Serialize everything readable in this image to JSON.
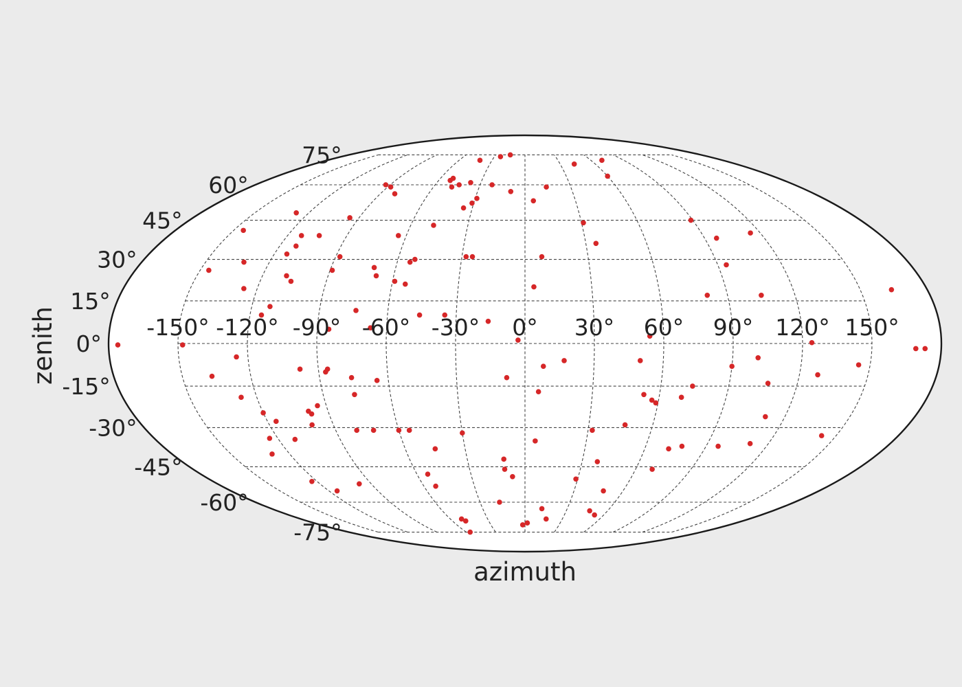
{
  "chart_data": {
    "type": "scatter",
    "projection": "mollweide",
    "title": "",
    "xlabel": "azimuth",
    "ylabel": "zenith",
    "xlim": [
      -180,
      180
    ],
    "ylim": [
      -90,
      90
    ],
    "grid": true,
    "x_ticks": [
      -150,
      -120,
      -90,
      -60,
      -30,
      0,
      30,
      60,
      90,
      120,
      150
    ],
    "x_tick_labels": [
      "-150°",
      "-120°",
      "-90°",
      "-60°",
      "-30°",
      "0°",
      "30°",
      "60°",
      "90°",
      "120°",
      "150°"
    ],
    "y_ticks": [
      75,
      60,
      45,
      30,
      15,
      0,
      -15,
      -30,
      -45,
      -60,
      -75
    ],
    "y_tick_labels": [
      "75°",
      "60°",
      "45°",
      "30°",
      "15°",
      "0°",
      "-15°",
      "-30°",
      "-45°",
      "-60°",
      "-75°"
    ],
    "marker_color": "#d62728",
    "background_color": "#ebebeb",
    "axes_facecolor": "#ffffff",
    "series": [
      {
        "points": [
          [
            -176,
            -0.5
          ],
          [
            -148,
            -0.5
          ],
          [
            -146,
            26
          ],
          [
            -145,
            41
          ],
          [
            -137,
            -11.5
          ],
          [
            -132,
            29
          ],
          [
            -127,
            -19
          ],
          [
            -124,
            -34
          ],
          [
            -125,
            -4.7
          ],
          [
            -126,
            19.4
          ],
          [
            -129,
            -40
          ],
          [
            -127,
            48
          ],
          [
            -123,
            -51
          ],
          [
            -120,
            -24.6
          ],
          [
            -116,
            -27.7
          ],
          [
            -112,
            -34.4
          ],
          [
            -115,
            -55
          ],
          [
            -114,
            32
          ],
          [
            -115,
            10
          ],
          [
            -113,
            39
          ],
          [
            -112,
            35
          ],
          [
            -112,
            13
          ],
          [
            -109,
            24
          ],
          [
            -106,
            22
          ],
          [
            -104,
            39
          ],
          [
            -100,
            -29
          ],
          [
            -99,
            -24
          ],
          [
            -98,
            -9
          ],
          [
            -98,
            -25
          ],
          [
            -97,
            -52
          ],
          [
            -95,
            46
          ],
          [
            -94,
            -22
          ],
          [
            -93,
            60
          ],
          [
            -89,
            26
          ],
          [
            -88,
            59
          ],
          [
            -88,
            31
          ],
          [
            -87,
            -10
          ],
          [
            -86,
            -9
          ],
          [
            -85,
            5
          ],
          [
            -80,
            -31
          ],
          [
            -81,
            56
          ],
          [
            -76,
            -12
          ],
          [
            -76,
            -18
          ],
          [
            -74,
            11.6
          ],
          [
            -70,
            27
          ],
          [
            -72,
            -31
          ],
          [
            -68,
            24
          ],
          [
            -65,
            -13
          ],
          [
            -67,
            5.5
          ],
          [
            -64,
            39
          ],
          [
            -60,
            -31
          ],
          [
            -59,
            22
          ],
          [
            -55,
            -31
          ],
          [
            -56,
            -75
          ],
          [
            -54,
            21
          ],
          [
            -54,
            -48
          ],
          [
            -53,
            -53
          ],
          [
            -54,
            29
          ],
          [
            -52,
            30
          ],
          [
            -51,
            -68
          ],
          [
            -52,
            62
          ],
          [
            -51,
            63
          ],
          [
            -49,
            -69
          ],
          [
            -48,
            43
          ],
          [
            -48,
            59
          ],
          [
            -46,
            10
          ],
          [
            -45,
            -38
          ],
          [
            -44,
            60
          ],
          [
            -41,
            72
          ],
          [
            -37,
            61
          ],
          [
            -35,
            10
          ],
          [
            -35,
            50
          ],
          [
            -31,
            52
          ],
          [
            -30,
            -32
          ],
          [
            -29,
            54
          ],
          [
            -28,
            31
          ],
          [
            -25,
            31
          ],
          [
            -24,
            74
          ],
          [
            -22,
            60
          ],
          [
            -17,
            -60
          ],
          [
            -16,
            7.8
          ],
          [
            -15,
            75
          ],
          [
            -11,
            -42
          ],
          [
            -11,
            -46
          ],
          [
            -8,
            -12
          ],
          [
            -9,
            57
          ],
          [
            -7,
            -49
          ],
          [
            -3,
            1.2
          ],
          [
            -2,
            -71
          ],
          [
            2,
            -70
          ],
          [
            4,
            20
          ],
          [
            5,
            -35
          ],
          [
            5,
            53
          ],
          [
            6,
            -17
          ],
          [
            8,
            -8
          ],
          [
            8,
            31
          ],
          [
            12,
            -63
          ],
          [
            14,
            59
          ],
          [
            17,
            -68
          ],
          [
            17,
            -6
          ],
          [
            29,
            -50
          ],
          [
            31,
            44
          ],
          [
            32,
            -31
          ],
          [
            35,
            36
          ],
          [
            38,
            -43
          ],
          [
            42,
            70
          ],
          [
            47,
            -29
          ],
          [
            47,
            -64
          ],
          [
            48,
            -55
          ],
          [
            50,
            -6
          ],
          [
            53,
            -18
          ],
          [
            53,
            -66
          ],
          [
            54,
            2.6
          ],
          [
            57,
            -20
          ],
          [
            59,
            -21
          ],
          [
            60,
            64
          ],
          [
            69,
            -46
          ],
          [
            70,
            -19
          ],
          [
            70,
            72
          ],
          [
            72,
            -38
          ],
          [
            74,
            -15
          ],
          [
            78,
            -37
          ],
          [
            81,
            17
          ],
          [
            89,
            45
          ],
          [
            90,
            -8
          ],
          [
            94,
            28
          ],
          [
            96,
            -37
          ],
          [
            96,
            38
          ],
          [
            101,
            -5
          ],
          [
            105,
            17
          ],
          [
            107,
            -14
          ],
          [
            111,
            -26
          ],
          [
            111,
            -36
          ],
          [
            115,
            40
          ],
          [
            124,
            0.3
          ],
          [
            128,
            -11
          ],
          [
            143,
            -33
          ],
          [
            145,
            -7.5
          ],
          [
            164,
            19
          ],
          [
            169,
            -1.8
          ],
          [
            173,
            -1.8
          ]
        ]
      }
    ]
  }
}
